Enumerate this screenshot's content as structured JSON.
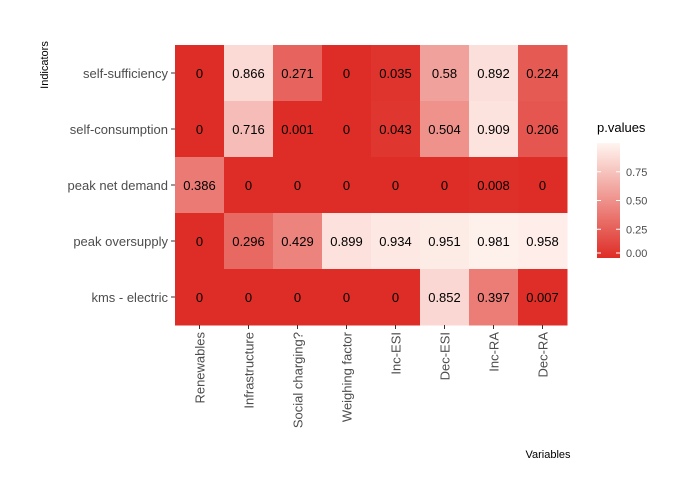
{
  "chart_data": {
    "type": "heatmap",
    "xlabel": "Variables",
    "ylabel": "Indicators",
    "x_categories": [
      "Renewables",
      "Infrastructure",
      "Social charging?",
      "Weighing factor",
      "Inc-ESI",
      "Dec-ESI",
      "Inc-RA",
      "Dec-RA"
    ],
    "y_categories": [
      "self-sufficiency",
      "self-consumption",
      "peak net demand",
      "peak oversupply",
      "kms - electric"
    ],
    "values": [
      [
        0,
        0.866,
        0.271,
        0,
        0.035,
        0.58,
        0.892,
        0.224
      ],
      [
        0,
        0.716,
        0.001,
        0,
        0.043,
        0.504,
        0.909,
        0.206
      ],
      [
        0.386,
        0,
        0,
        0,
        0,
        0,
        0.008,
        0
      ],
      [
        0,
        0.296,
        0.429,
        0.899,
        0.934,
        0.951,
        0.981,
        0.958
      ],
      [
        0,
        0,
        0,
        0,
        0,
        0.852,
        0.397,
        0.007
      ]
    ],
    "labels": [
      [
        "0",
        "0.866",
        "0.271",
        "0",
        "0.035",
        "0.58",
        "0.892",
        "0.224"
      ],
      [
        "0",
        "0.716",
        "0.001",
        "0",
        "0.043",
        "0.504",
        "0.909",
        "0.206"
      ],
      [
        "0.386",
        "0",
        "0",
        "0",
        "0",
        "0",
        "0.008",
        "0"
      ],
      [
        "0",
        "0.296",
        "0.429",
        "0.899",
        "0.934",
        "0.951",
        "0.981",
        "0.958"
      ],
      [
        "0",
        "0",
        "0",
        "0",
        "0",
        "0.852",
        "0.397",
        "0.007"
      ]
    ],
    "legend": {
      "title": "p.values",
      "ticks": [
        0,
        0.25,
        0.5,
        0.75
      ],
      "tick_labels": [
        "0.00",
        "0.25",
        "0.50",
        "0.75"
      ],
      "range": [
        0,
        1
      ],
      "placement": "right"
    },
    "colors": {
      "low": "#de2d26",
      "high": "#fff5f0"
    },
    "grid": false
  }
}
